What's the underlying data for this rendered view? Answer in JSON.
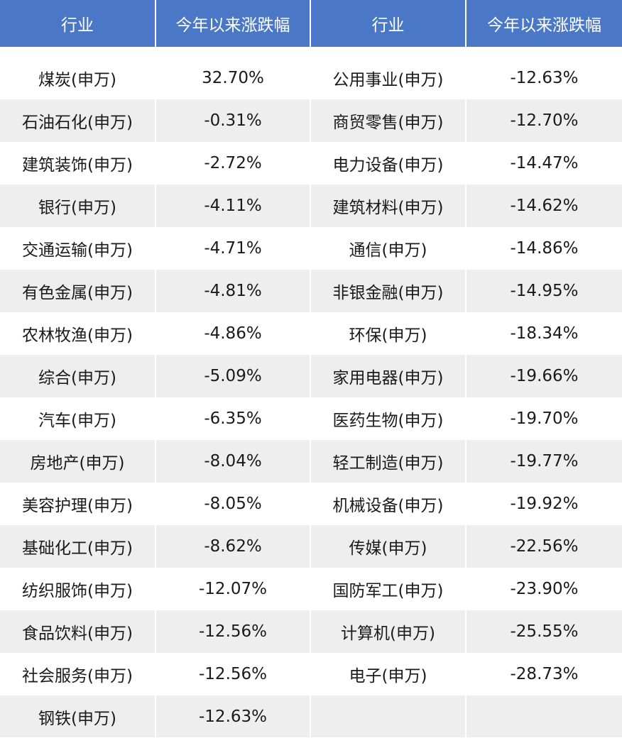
{
  "headers": [
    "行业",
    "今年以来涨跌幅",
    "行业",
    "今年以来涨跌幅"
  ],
  "rows": [
    [
      "煤炭(申万)",
      "32.70%",
      "公用事业(申万)",
      "-12.63%"
    ],
    [
      "石油石化(申万)",
      "-0.31%",
      "商贸零售(申万)",
      "-12.70%"
    ],
    [
      "建筑装饰(申万)",
      "-2.72%",
      "电力设备(申万)",
      "-14.47%"
    ],
    [
      "银行(申万)",
      "-4.11%",
      "建筑材料(申万)",
      "-14.62%"
    ],
    [
      "交通运输(申万)",
      "-4.71%",
      "通信(申万)",
      "-14.86%"
    ],
    [
      "有色金属(申万)",
      "-4.81%",
      "非银金融(申万)",
      "-14.95%"
    ],
    [
      "农林牧渔(申万)",
      "-4.86%",
      "环保(申万)",
      "-18.34%"
    ],
    [
      "综合(申万)",
      "-5.09%",
      "家用电器(申万)",
      "-19.66%"
    ],
    [
      "汽车(申万)",
      "-6.35%",
      "医药生物(申万)",
      "-19.70%"
    ],
    [
      "房地产(申万)",
      "-8.04%",
      "轻工制造(申万)",
      "-19.77%"
    ],
    [
      "美容护理(申万)",
      "-8.05%",
      "机械设备(申万)",
      "-19.92%"
    ],
    [
      "基础化工(申万)",
      "-8.62%",
      "传媒(申万)",
      "-22.56%"
    ],
    [
      "纺织服饰(申万)",
      "-12.07%",
      "国防军工(申万)",
      "-23.90%"
    ],
    [
      "食品饮料(申万)",
      "-12.56%",
      "计算机(申万)",
      "-25.55%"
    ],
    [
      "社会服务(申万)",
      "-12.56%",
      "电子(申万)",
      "-28.73%"
    ],
    [
      "钢铁(申万)",
      "-12.63%",
      "",
      ""
    ]
  ],
  "colors": {
    "header_bg": "#4a78c6",
    "stripe_bg": "#eeeeee"
  }
}
